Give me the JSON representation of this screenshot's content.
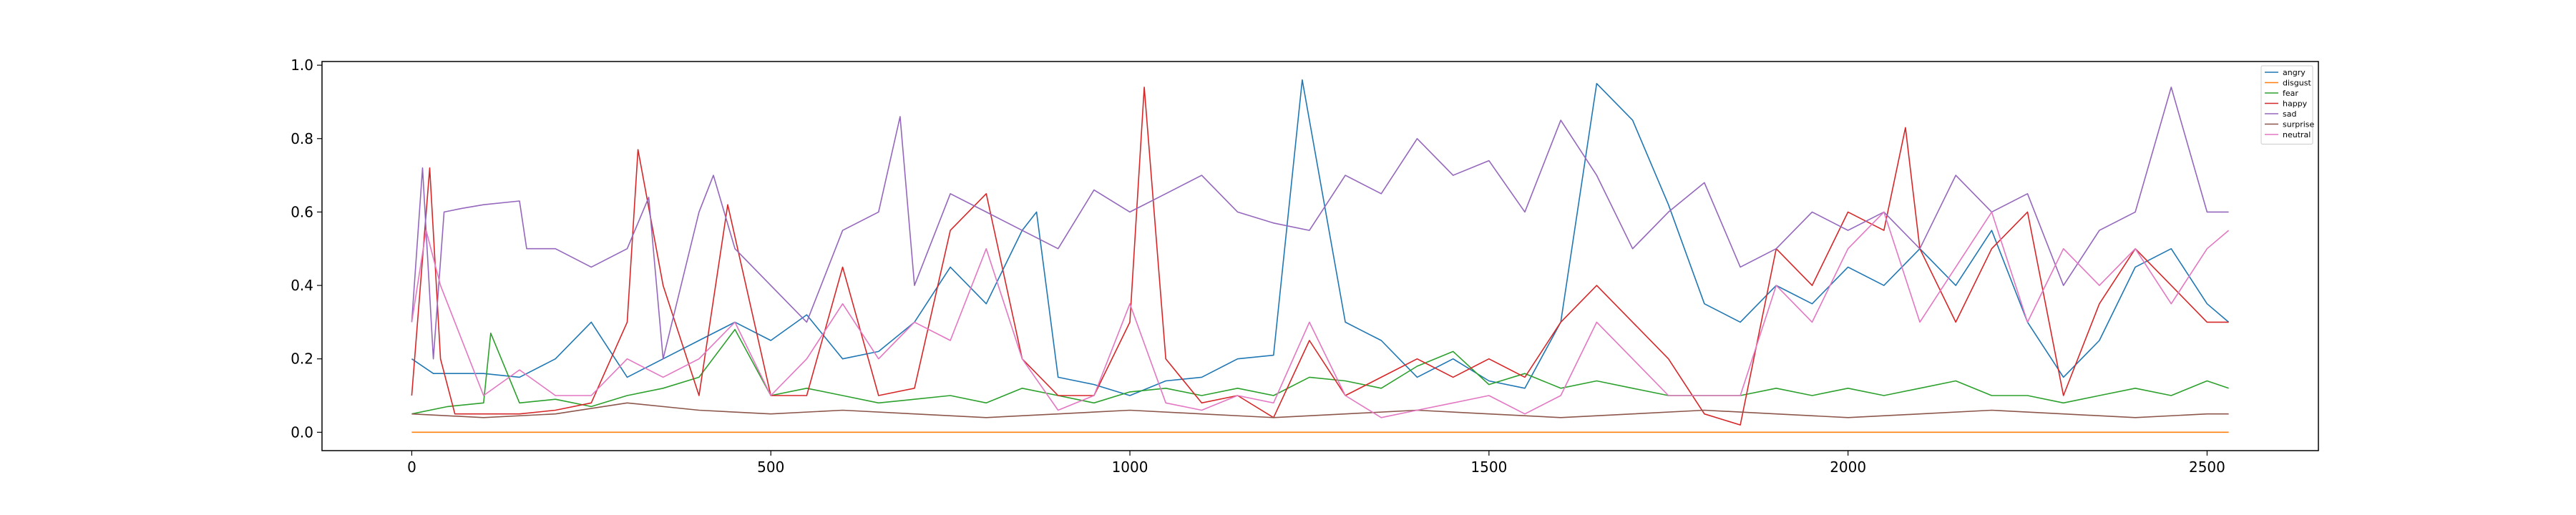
{
  "chart_data": {
    "type": "line",
    "title": "",
    "xlabel": "",
    "ylabel": "",
    "xlim": [
      -125,
      2655
    ],
    "ylim": [
      -0.05,
      1.01
    ],
    "x_ticks": [
      0,
      500,
      1000,
      1500,
      2000,
      2500
    ],
    "x_tick_labels": [
      "0",
      "500",
      "1000",
      "1500",
      "2000",
      "2500"
    ],
    "y_ticks": [
      0.0,
      0.2,
      0.4,
      0.6,
      0.8,
      1.0
    ],
    "y_tick_labels": [
      "0.0",
      "0.2",
      "0.4",
      "0.6",
      "0.8",
      "1.0"
    ],
    "grid": false,
    "legend_position": "top-right",
    "n_points": 2530,
    "series": [
      {
        "name": "angry",
        "color": "#1f77b4",
        "x": [
          0,
          30,
          60,
          100,
          150,
          200,
          250,
          300,
          350,
          400,
          450,
          500,
          550,
          600,
          650,
          700,
          750,
          800,
          850,
          870,
          900,
          950,
          1000,
          1050,
          1100,
          1150,
          1200,
          1240,
          1300,
          1350,
          1400,
          1450,
          1500,
          1550,
          1600,
          1650,
          1700,
          1750,
          1800,
          1850,
          1900,
          1950,
          2000,
          2050,
          2100,
          2150,
          2200,
          2250,
          2300,
          2350,
          2400,
          2450,
          2500,
          2530
        ],
        "y": [
          0.2,
          0.16,
          0.16,
          0.16,
          0.15,
          0.2,
          0.3,
          0.15,
          0.2,
          0.25,
          0.3,
          0.25,
          0.32,
          0.2,
          0.22,
          0.3,
          0.45,
          0.35,
          0.55,
          0.6,
          0.15,
          0.13,
          0.1,
          0.14,
          0.15,
          0.2,
          0.21,
          0.96,
          0.3,
          0.25,
          0.15,
          0.2,
          0.14,
          0.12,
          0.3,
          0.95,
          0.85,
          0.62,
          0.35,
          0.3,
          0.4,
          0.35,
          0.45,
          0.4,
          0.5,
          0.4,
          0.55,
          0.3,
          0.15,
          0.25,
          0.45,
          0.5,
          0.35,
          0.3
        ]
      },
      {
        "name": "disgust",
        "color": "#ff7f0e",
        "x": [
          0,
          500,
          1000,
          1500,
          2000,
          2530
        ],
        "y": [
          0.0,
          0.0,
          0.0,
          0.0,
          0.0,
          0.0
        ]
      },
      {
        "name": "fear",
        "color": "#2ca02c",
        "x": [
          0,
          50,
          100,
          110,
          150,
          200,
          250,
          300,
          350,
          400,
          450,
          500,
          550,
          600,
          650,
          700,
          750,
          800,
          850,
          900,
          950,
          1000,
          1050,
          1100,
          1150,
          1200,
          1250,
          1300,
          1350,
          1400,
          1450,
          1500,
          1550,
          1600,
          1650,
          1700,
          1750,
          1800,
          1850,
          1900,
          1950,
          2000,
          2050,
          2100,
          2150,
          2200,
          2250,
          2300,
          2350,
          2400,
          2450,
          2500,
          2530
        ],
        "y": [
          0.05,
          0.07,
          0.08,
          0.27,
          0.08,
          0.09,
          0.07,
          0.1,
          0.12,
          0.15,
          0.28,
          0.1,
          0.12,
          0.1,
          0.08,
          0.09,
          0.1,
          0.08,
          0.12,
          0.1,
          0.08,
          0.11,
          0.12,
          0.1,
          0.12,
          0.1,
          0.15,
          0.14,
          0.12,
          0.18,
          0.22,
          0.13,
          0.16,
          0.12,
          0.14,
          0.12,
          0.1,
          0.1,
          0.1,
          0.12,
          0.1,
          0.12,
          0.1,
          0.12,
          0.14,
          0.1,
          0.1,
          0.08,
          0.1,
          0.12,
          0.1,
          0.14,
          0.12
        ]
      },
      {
        "name": "happy",
        "color": "#d62728",
        "x": [
          0,
          25,
          40,
          60,
          150,
          200,
          250,
          300,
          315,
          350,
          400,
          440,
          500,
          550,
          600,
          650,
          700,
          750,
          800,
          850,
          900,
          950,
          1000,
          1020,
          1050,
          1100,
          1150,
          1200,
          1250,
          1300,
          1350,
          1400,
          1450,
          1500,
          1550,
          1600,
          1650,
          1700,
          1750,
          1800,
          1850,
          1900,
          1950,
          2000,
          2050,
          2080,
          2100,
          2150,
          2200,
          2250,
          2300,
          2350,
          2400,
          2450,
          2500,
          2530
        ],
        "y": [
          0.1,
          0.72,
          0.2,
          0.05,
          0.05,
          0.06,
          0.08,
          0.3,
          0.77,
          0.4,
          0.1,
          0.62,
          0.1,
          0.1,
          0.45,
          0.1,
          0.12,
          0.55,
          0.65,
          0.2,
          0.1,
          0.1,
          0.3,
          0.94,
          0.2,
          0.08,
          0.1,
          0.04,
          0.25,
          0.1,
          0.15,
          0.2,
          0.15,
          0.2,
          0.15,
          0.3,
          0.4,
          0.3,
          0.2,
          0.05,
          0.02,
          0.5,
          0.4,
          0.6,
          0.55,
          0.83,
          0.5,
          0.3,
          0.5,
          0.6,
          0.1,
          0.35,
          0.5,
          0.4,
          0.3,
          0.3
        ]
      },
      {
        "name": "sad",
        "color": "#9467bd",
        "x": [
          0,
          15,
          30,
          45,
          70,
          100,
          150,
          160,
          200,
          250,
          300,
          330,
          350,
          400,
          420,
          450,
          500,
          550,
          600,
          650,
          680,
          700,
          750,
          800,
          850,
          900,
          950,
          1000,
          1050,
          1100,
          1150,
          1200,
          1250,
          1300,
          1350,
          1400,
          1450,
          1500,
          1550,
          1600,
          1650,
          1700,
          1750,
          1800,
          1850,
          1900,
          1950,
          2000,
          2050,
          2100,
          2150,
          2200,
          2250,
          2300,
          2350,
          2400,
          2450,
          2500,
          2530
        ],
        "y": [
          0.3,
          0.72,
          0.2,
          0.6,
          0.61,
          0.62,
          0.63,
          0.5,
          0.5,
          0.45,
          0.5,
          0.64,
          0.2,
          0.6,
          0.7,
          0.5,
          0.4,
          0.3,
          0.55,
          0.6,
          0.86,
          0.4,
          0.65,
          0.6,
          0.55,
          0.5,
          0.66,
          0.6,
          0.65,
          0.7,
          0.6,
          0.57,
          0.55,
          0.7,
          0.65,
          0.8,
          0.7,
          0.74,
          0.6,
          0.85,
          0.7,
          0.5,
          0.6,
          0.68,
          0.45,
          0.5,
          0.6,
          0.55,
          0.6,
          0.5,
          0.7,
          0.6,
          0.65,
          0.4,
          0.55,
          0.6,
          0.94,
          0.6,
          0.6
        ]
      },
      {
        "name": "surprise",
        "color": "#8c564b",
        "x": [
          0,
          100,
          200,
          300,
          400,
          500,
          600,
          700,
          800,
          900,
          1000,
          1100,
          1200,
          1300,
          1400,
          1500,
          1600,
          1700,
          1800,
          1900,
          2000,
          2100,
          2200,
          2300,
          2400,
          2500,
          2530
        ],
        "y": [
          0.05,
          0.04,
          0.05,
          0.08,
          0.06,
          0.05,
          0.06,
          0.05,
          0.04,
          0.05,
          0.06,
          0.05,
          0.04,
          0.05,
          0.06,
          0.05,
          0.04,
          0.05,
          0.06,
          0.05,
          0.04,
          0.05,
          0.06,
          0.05,
          0.04,
          0.05,
          0.05
        ]
      },
      {
        "name": "neutral",
        "color": "#e377c2",
        "x": [
          0,
          20,
          40,
          100,
          150,
          200,
          250,
          300,
          350,
          400,
          450,
          500,
          550,
          600,
          650,
          700,
          750,
          800,
          850,
          900,
          950,
          1000,
          1050,
          1100,
          1150,
          1200,
          1250,
          1300,
          1350,
          1400,
          1450,
          1500,
          1550,
          1600,
          1650,
          1700,
          1750,
          1800,
          1850,
          1900,
          1950,
          2000,
          2050,
          2100,
          2150,
          2200,
          2250,
          2300,
          2350,
          2400,
          2450,
          2500,
          2530
        ],
        "y": [
          0.3,
          0.55,
          0.4,
          0.1,
          0.17,
          0.1,
          0.1,
          0.2,
          0.15,
          0.2,
          0.3,
          0.1,
          0.2,
          0.35,
          0.2,
          0.3,
          0.25,
          0.5,
          0.2,
          0.06,
          0.1,
          0.35,
          0.08,
          0.06,
          0.1,
          0.08,
          0.3,
          0.1,
          0.04,
          0.06,
          0.08,
          0.1,
          0.05,
          0.1,
          0.3,
          0.2,
          0.1,
          0.1,
          0.1,
          0.4,
          0.3,
          0.5,
          0.6,
          0.3,
          0.45,
          0.6,
          0.3,
          0.5,
          0.4,
          0.5,
          0.35,
          0.5,
          0.55
        ]
      }
    ]
  }
}
